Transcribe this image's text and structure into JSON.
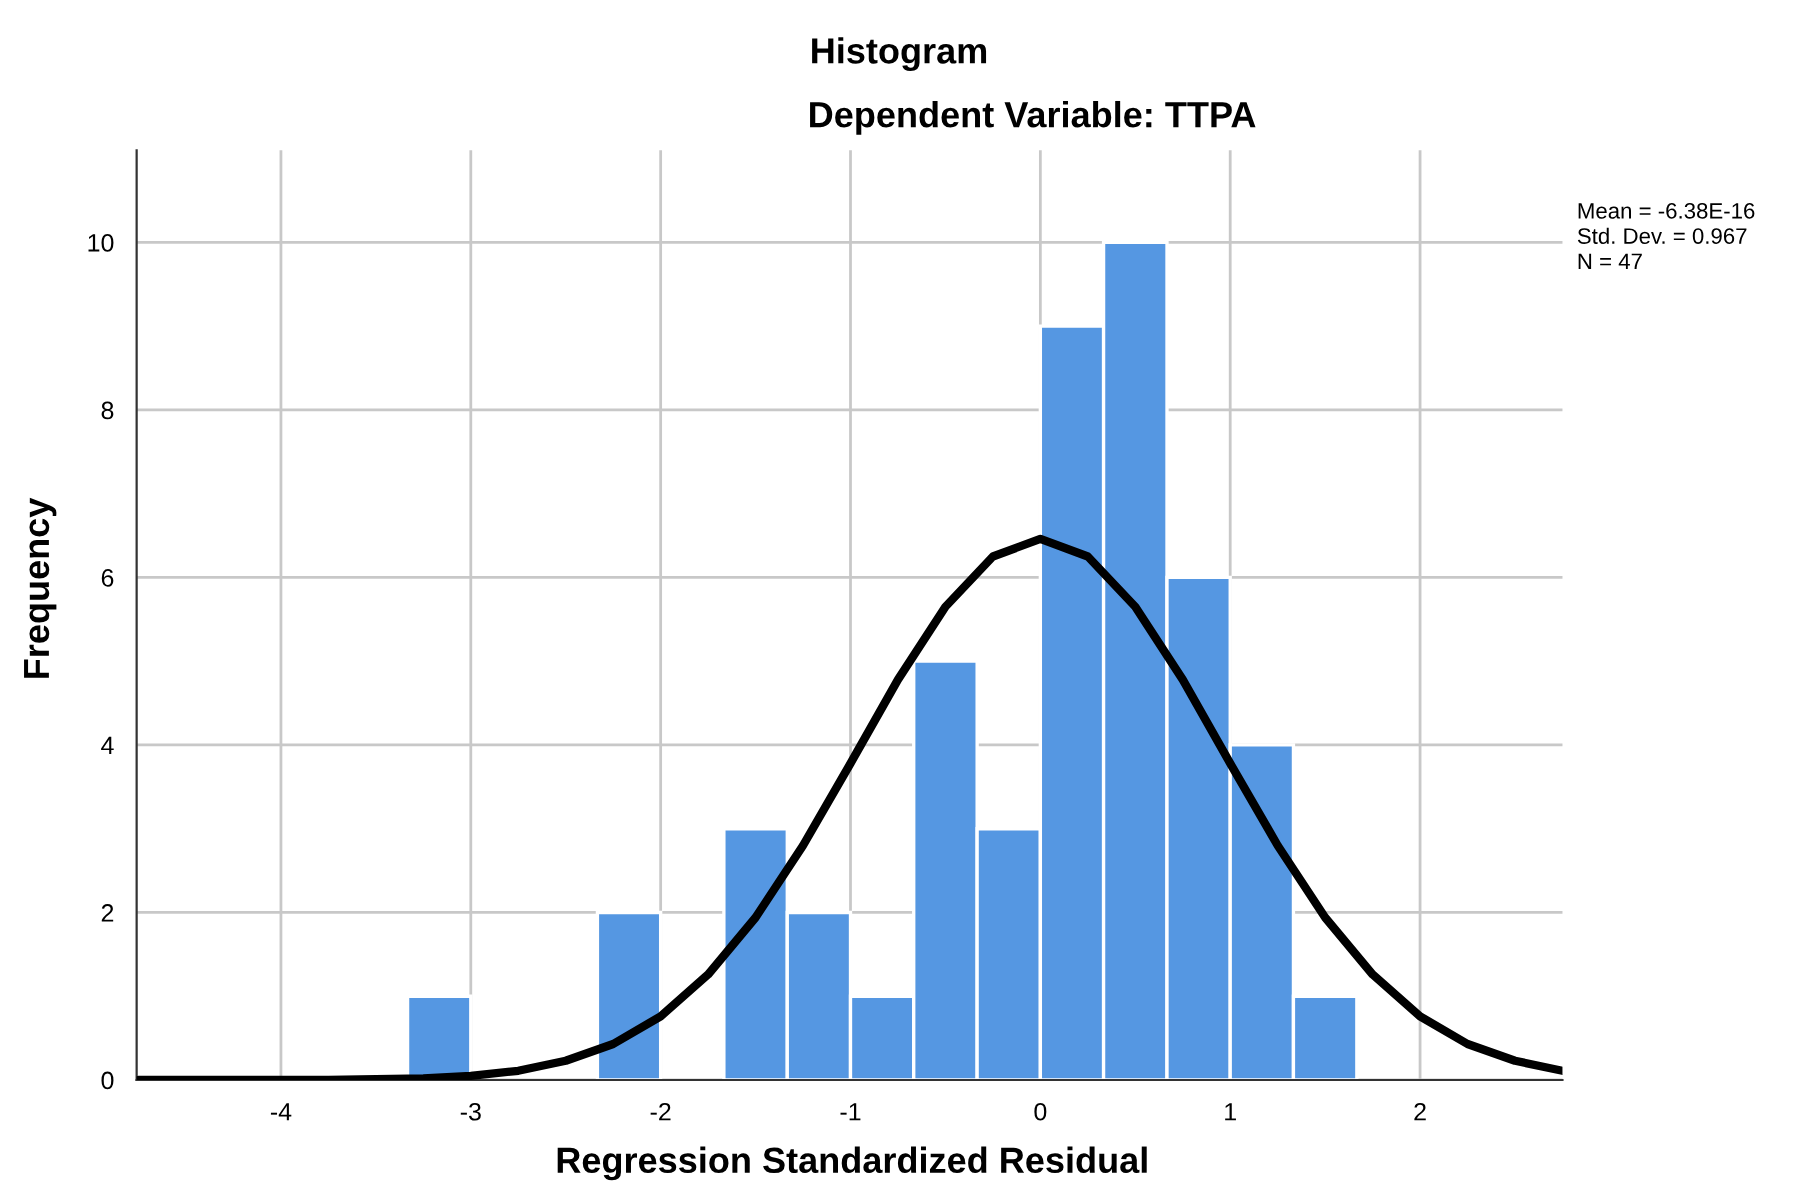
{
  "chart_data": {
    "type": "histogram",
    "title": "Histogram",
    "subtitle": "Dependent Variable: TTPA",
    "xlabel": "Regression Standardized Residual",
    "ylabel": "Frequency",
    "bins": [
      -3.333,
      -3,
      -2.667,
      -2.333,
      -2,
      -1.667,
      -1.333,
      -1,
      -0.667,
      -0.333,
      0,
      0.333,
      0.667,
      1,
      1.333,
      1.667
    ],
    "values": [
      1,
      0,
      0,
      2,
      0,
      3,
      2,
      1,
      5,
      3,
      9,
      10,
      6,
      4,
      1
    ],
    "color": "#5597e2",
    "series": [
      {
        "type": "line",
        "color": "#000000",
        "x": [
          -4.75,
          -4.5,
          -4.25,
          -4,
          -3.75,
          -3.5,
          -3.25,
          -3,
          -2.75,
          -2.5,
          -2.25,
          -2,
          -1.75,
          -1.5,
          -1.25,
          -1,
          -0.75,
          -0.5,
          -0.25,
          0,
          0.25,
          0.5,
          0.75,
          1,
          1.25,
          1.5,
          1.75,
          2,
          2.25,
          2.5,
          2.75
        ],
        "values": [
          0,
          0,
          0,
          0,
          0,
          0.01,
          0.02,
          0.05,
          0.11,
          0.23,
          0.43,
          0.76,
          1.26,
          1.94,
          2.8,
          3.78,
          4.78,
          5.65,
          6.25,
          6.46,
          6.25,
          5.65,
          4.78,
          3.78,
          2.8,
          1.94,
          1.26,
          0.76,
          0.43,
          0.23,
          0.11
        ]
      }
    ],
    "xlim": [
      -4.76,
      2.75
    ],
    "ylim": [
      0,
      11.1
    ],
    "xticks": [
      -4,
      -3,
      -2,
      -1,
      0,
      1,
      2
    ],
    "yticks": [
      0,
      2,
      4,
      6,
      8,
      10
    ],
    "grid": true,
    "annotations": [
      "Mean = -6.38E-16",
      "Std. Dev. = 0.967",
      "N = 47"
    ]
  }
}
